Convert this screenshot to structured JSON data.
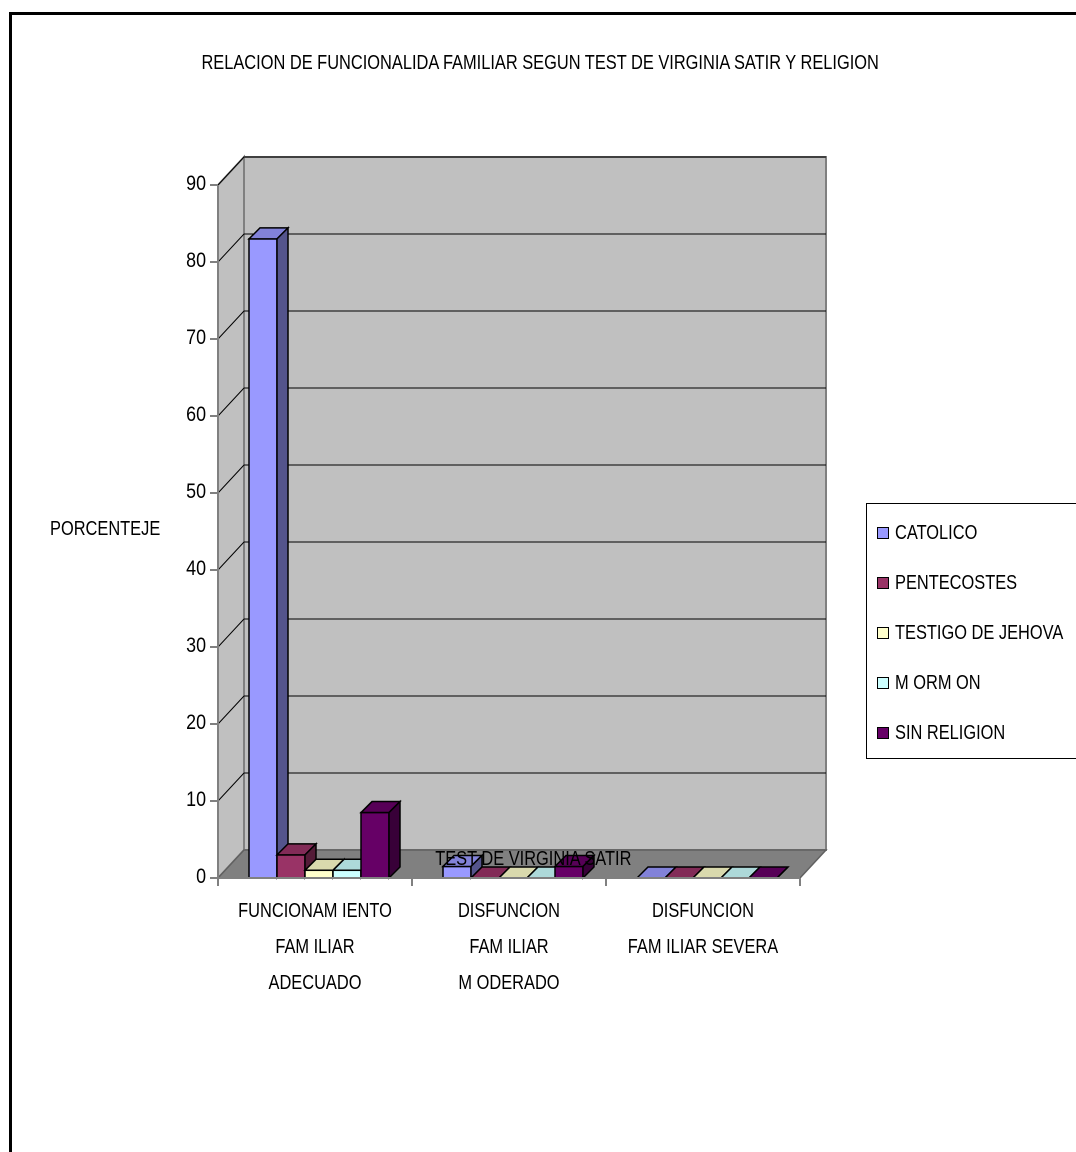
{
  "chart_data": {
    "type": "bar",
    "title": "RELACION DE FUNCIONALIDA FAMILIAR SEGUN TEST DE VIRGINIA SATIR Y RELIGION",
    "xlabel": "TEST DE VIRGINIA SATIR",
    "ylabel": "PORCENTEJE",
    "ylim": [
      0,
      90
    ],
    "yticks": [
      "0",
      "10",
      "20",
      "30",
      "40",
      "50",
      "60",
      "70",
      "80",
      "90"
    ],
    "categories": [
      "FUNCIONAM IENTO\nFAM ILIAR\nADECUADO",
      "DISFUNCION\nFAM ILIAR\nM ODERADO",
      "DISFUNCION\nFAM ILIAR SEVERA"
    ],
    "series": [
      {
        "name": "CATOLICO",
        "values": [
          83,
          1.5,
          0
        ],
        "color": "#9999FF"
      },
      {
        "name": "PENTECOSTES",
        "values": [
          3,
          0,
          0
        ],
        "color": "#993366"
      },
      {
        "name": "TESTIGO DE JEHOVA",
        "values": [
          1,
          0,
          0
        ],
        "color": "#FFFFCC"
      },
      {
        "name": "M ORM ON",
        "values": [
          1,
          0,
          0
        ],
        "color": "#CCFFFF"
      },
      {
        "name": "SIN RELIGION",
        "values": [
          8.5,
          1.5,
          0
        ],
        "color": "#660066"
      }
    ],
    "grid": true,
    "legend_position": "right",
    "three_d": true,
    "wall_color": "#C0C0C0",
    "floor_color": "#808080"
  }
}
